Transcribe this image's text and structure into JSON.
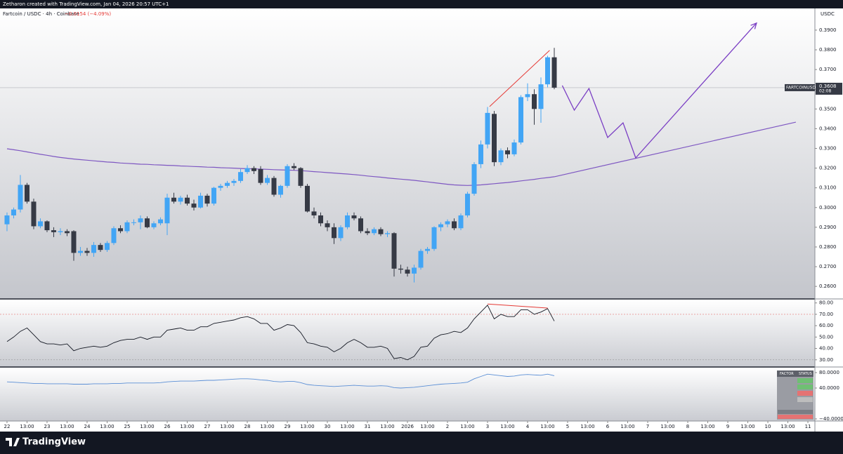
{
  "header": {
    "credit": "Zetharon created with TradingView.com, Jan 04, 2026 20:57 UTC+1",
    "symbol": "Fartcoin / USDC · 4h · Coinbase",
    "change": "−0.0154 (−4.09%)"
  },
  "footer": {
    "brand": "TradingView"
  },
  "chart_data": [
    {
      "type": "candlestick",
      "ticker": "FARTCOINUSDC",
      "currency": "USDC",
      "countdown": "02:08",
      "up_color": "#42a5f5",
      "down_color": "#363a45",
      "xlim": [
        -1.05,
        121.05
      ],
      "xticks": [
        {
          "value": 0,
          "label": "22"
        },
        {
          "value": 3,
          "label": "13:00"
        },
        {
          "value": 6,
          "label": "23"
        },
        {
          "value": 9,
          "label": "13:00"
        },
        {
          "value": 12,
          "label": "24"
        },
        {
          "value": 15,
          "label": "13:00"
        },
        {
          "value": 18,
          "label": "25"
        },
        {
          "value": 21,
          "label": "13:00"
        },
        {
          "value": 24,
          "label": "26"
        },
        {
          "value": 27,
          "label": "13:00"
        },
        {
          "value": 30,
          "label": "27"
        },
        {
          "value": 33,
          "label": "13:00"
        },
        {
          "value": 36,
          "label": "28"
        },
        {
          "value": 39,
          "label": "13:00"
        },
        {
          "value": 42,
          "label": "29"
        },
        {
          "value": 45,
          "label": "13:00"
        },
        {
          "value": 48,
          "label": "30"
        },
        {
          "value": 51,
          "label": "13:00"
        },
        {
          "value": 54,
          "label": "31"
        },
        {
          "value": 57,
          "label": "13:00"
        },
        {
          "value": 60,
          "label": "2026"
        },
        {
          "value": 63,
          "label": "13:00"
        },
        {
          "value": 66,
          "label": "2"
        },
        {
          "value": 69,
          "label": "13:00"
        },
        {
          "value": 72,
          "label": "3"
        },
        {
          "value": 75,
          "label": "13:00"
        },
        {
          "value": 78,
          "label": "4"
        },
        {
          "value": 81,
          "label": "13:00"
        },
        {
          "value": 84,
          "label": "5"
        },
        {
          "value": 87,
          "label": "13:00"
        },
        {
          "value": 90,
          "label": "6"
        },
        {
          "value": 93,
          "label": "13:00"
        },
        {
          "value": 96,
          "label": "7"
        },
        {
          "value": 99,
          "label": "13:00"
        },
        {
          "value": 102,
          "label": "8"
        },
        {
          "value": 105,
          "label": "13:00"
        },
        {
          "value": 108,
          "label": "9"
        },
        {
          "value": 111,
          "label": "13:00"
        },
        {
          "value": 114,
          "label": "10"
        },
        {
          "value": 117,
          "label": "13:00"
        },
        {
          "value": 120,
          "label": "11"
        }
      ],
      "ylim": [
        0.254,
        0.401
      ],
      "yticks": [
        {
          "value": 0.26,
          "label": "0.2600"
        },
        {
          "value": 0.27,
          "label": "0.2700"
        },
        {
          "value": 0.28,
          "label": "0.2800"
        },
        {
          "value": 0.29,
          "label": "0.2900"
        },
        {
          "value": 0.3,
          "label": "0.3000"
        },
        {
          "value": 0.31,
          "label": "0.3100"
        },
        {
          "value": 0.32,
          "label": "0.3200"
        },
        {
          "value": 0.33,
          "label": "0.3300"
        },
        {
          "value": 0.34,
          "label": "0.3400"
        },
        {
          "value": 0.35,
          "label": "0.3500"
        },
        {
          "value": 0.36,
          "label": "0.3600"
        },
        {
          "value": 0.37,
          "label": "0.3700"
        },
        {
          "value": 0.38,
          "label": "0.3800"
        },
        {
          "value": 0.39,
          "label": "0.3900"
        }
      ],
      "open": [
        0.2915,
        0.296,
        0.299,
        0.3115,
        0.303,
        0.2905,
        0.293,
        0.2885,
        0.2875,
        0.288,
        0.288,
        0.277,
        0.278,
        0.277,
        0.281,
        0.2785,
        0.282,
        0.2895,
        0.288,
        0.2925,
        0.2925,
        0.2945,
        0.29,
        0.292,
        0.292,
        0.305,
        0.303,
        0.305,
        0.302,
        0.3,
        0.306,
        0.302,
        0.31,
        0.311,
        0.3125,
        0.3135,
        0.318,
        0.32,
        0.3195,
        0.3125,
        0.315,
        0.3065,
        0.311,
        0.321,
        0.32,
        0.311,
        0.298,
        0.296,
        0.292,
        0.29,
        0.2845,
        0.29,
        0.296,
        0.2945,
        0.288,
        0.287,
        0.289,
        0.2865,
        0.287,
        0.269,
        0.2685,
        0.2665,
        0.2695,
        0.278,
        0.279,
        0.29,
        0.2915,
        0.293,
        0.2895,
        0.296,
        0.307,
        0.322,
        0.332,
        0.3475,
        0.323,
        0.329,
        0.327,
        0.333,
        0.356,
        0.3575,
        0.35,
        0.3625,
        0.3762
      ],
      "high": [
        0.2975,
        0.3,
        0.3165,
        0.3125,
        0.3045,
        0.2945,
        0.2935,
        0.29,
        0.2895,
        0.289,
        0.2885,
        0.28,
        0.2795,
        0.2825,
        0.282,
        0.283,
        0.2905,
        0.291,
        0.2935,
        0.294,
        0.296,
        0.2955,
        0.293,
        0.295,
        0.307,
        0.3075,
        0.306,
        0.3065,
        0.304,
        0.3075,
        0.307,
        0.3105,
        0.312,
        0.3135,
        0.3145,
        0.3195,
        0.3215,
        0.321,
        0.321,
        0.3165,
        0.316,
        0.3115,
        0.322,
        0.3225,
        0.3205,
        0.312,
        0.3,
        0.2975,
        0.2935,
        0.292,
        0.291,
        0.2975,
        0.2975,
        0.2955,
        0.2895,
        0.29,
        0.29,
        0.288,
        0.2875,
        0.271,
        0.27,
        0.271,
        0.279,
        0.28,
        0.2905,
        0.2925,
        0.294,
        0.2945,
        0.297,
        0.308,
        0.323,
        0.334,
        0.351,
        0.349,
        0.33,
        0.3305,
        0.3345,
        0.357,
        0.363,
        0.36,
        0.366,
        0.377,
        0.381
      ],
      "low": [
        0.288,
        0.2945,
        0.2975,
        0.302,
        0.289,
        0.2895,
        0.2875,
        0.285,
        0.286,
        0.2855,
        0.273,
        0.2755,
        0.2755,
        0.275,
        0.2775,
        0.2775,
        0.281,
        0.287,
        0.287,
        0.291,
        0.289,
        0.2895,
        0.289,
        0.291,
        0.286,
        0.302,
        0.3015,
        0.301,
        0.2985,
        0.2995,
        0.3005,
        0.301,
        0.3085,
        0.31,
        0.311,
        0.3125,
        0.317,
        0.317,
        0.3115,
        0.3115,
        0.3055,
        0.305,
        0.31,
        0.319,
        0.31,
        0.2975,
        0.2945,
        0.2905,
        0.288,
        0.2815,
        0.283,
        0.289,
        0.2935,
        0.287,
        0.286,
        0.286,
        0.2855,
        0.285,
        0.265,
        0.2665,
        0.265,
        0.262,
        0.2685,
        0.2765,
        0.278,
        0.288,
        0.29,
        0.2885,
        0.2885,
        0.295,
        0.306,
        0.32,
        0.33,
        0.321,
        0.3215,
        0.325,
        0.326,
        0.332,
        0.354,
        0.342,
        0.343,
        0.361,
        0.36
      ],
      "close": [
        0.296,
        0.299,
        0.3115,
        0.303,
        0.2905,
        0.293,
        0.2885,
        0.2875,
        0.288,
        0.287,
        0.277,
        0.278,
        0.277,
        0.281,
        0.2785,
        0.282,
        0.2895,
        0.288,
        0.2925,
        0.2925,
        0.2945,
        0.29,
        0.292,
        0.294,
        0.305,
        0.303,
        0.305,
        0.302,
        0.3,
        0.306,
        0.302,
        0.31,
        0.311,
        0.3125,
        0.3135,
        0.318,
        0.32,
        0.3185,
        0.3125,
        0.315,
        0.3065,
        0.311,
        0.321,
        0.32,
        0.311,
        0.298,
        0.296,
        0.292,
        0.29,
        0.2845,
        0.29,
        0.296,
        0.2945,
        0.288,
        0.287,
        0.289,
        0.2865,
        0.287,
        0.269,
        0.2685,
        0.2665,
        0.2695,
        0.278,
        0.279,
        0.29,
        0.2915,
        0.293,
        0.2895,
        0.296,
        0.307,
        0.322,
        0.332,
        0.348,
        0.323,
        0.329,
        0.327,
        0.333,
        0.356,
        0.3575,
        0.35,
        0.3625,
        0.3762,
        0.3608
      ],
      "ma": {
        "color": "#7e57c2",
        "values": [
          0.3298,
          0.3293,
          0.3288,
          0.3282,
          0.3276,
          0.327,
          0.3265,
          0.3259,
          0.3254,
          0.325,
          0.3246,
          0.3243,
          0.324,
          0.3237,
          0.3234,
          0.3231,
          0.3229,
          0.3226,
          0.3224,
          0.3222,
          0.322,
          0.3219,
          0.3217,
          0.3216,
          0.3214,
          0.3213,
          0.3211,
          0.321,
          0.3208,
          0.3207,
          0.3205,
          0.3204,
          0.3202,
          0.3201,
          0.32,
          0.3198,
          0.3197,
          0.3196,
          0.3195,
          0.3194,
          0.3192,
          0.3191,
          0.319,
          0.3189,
          0.3187,
          0.3185,
          0.3182,
          0.318,
          0.3177,
          0.3175,
          0.3172,
          0.317,
          0.3167,
          0.3164,
          0.316,
          0.3157,
          0.3154,
          0.315,
          0.3147,
          0.3144,
          0.3141,
          0.3138,
          0.3134,
          0.313,
          0.3126,
          0.3122,
          0.3118,
          0.3115,
          0.3113,
          0.3112,
          0.3113,
          0.3115,
          0.3118,
          0.3121,
          0.3124,
          0.3127,
          0.3131,
          0.3135,
          0.3139,
          0.3143,
          0.3148,
          0.3152,
          0.3156
        ]
      },
      "trendline": {
        "color": "#7e57c2",
        "x": [
          82,
          118.2
        ],
        "values": [
          0.3156,
          0.3433
        ]
      },
      "projection": {
        "color": "#7b3fc4",
        "x": [
          83.2,
          85,
          87.2,
          90,
          92.3,
          94.2,
          112.3
        ],
        "values": [
          0.3619,
          0.3494,
          0.3604,
          0.3355,
          0.343,
          0.3252,
          0.3936
        ]
      },
      "divergence": {
        "color": "#e53935",
        "x": [
          72.3,
          81.3
        ],
        "values": [
          0.3512,
          0.3797
        ]
      }
    },
    {
      "type": "line",
      "color": "#131722",
      "ylim": [
        24.3,
        82.9
      ],
      "yticks": [
        {
          "value": 80,
          "label": "80.00"
        },
        {
          "value": 70,
          "label": "70.00"
        },
        {
          "value": 60,
          "label": "60.00"
        },
        {
          "value": 50,
          "label": "50.00"
        },
        {
          "value": 40,
          "label": "40.00"
        },
        {
          "value": 30,
          "label": "30.00"
        }
      ],
      "levels": [
        70,
        30
      ],
      "level_colors": [
        "#e57373",
        "#9e9e9e"
      ],
      "values": [
        46,
        50,
        55,
        58,
        52,
        46,
        44,
        44,
        43,
        44,
        38,
        40,
        41,
        42,
        41,
        42,
        45,
        47,
        48,
        48,
        50,
        48,
        50,
        50,
        56,
        57,
        58,
        56,
        56,
        59,
        59,
        62,
        63,
        64,
        65,
        67,
        68,
        66,
        62,
        62,
        56,
        58,
        61,
        60,
        54,
        45,
        44,
        42,
        41,
        37,
        40,
        45,
        48,
        45,
        41,
        41,
        42,
        40,
        31,
        32,
        30,
        33,
        41,
        42,
        49,
        52,
        53,
        55,
        54,
        58,
        66,
        72,
        78,
        66,
        70,
        68,
        68,
        74,
        74,
        70,
        72,
        75,
        64
      ],
      "divergence": {
        "color": "#e53935",
        "x": [
          72,
          81
        ],
        "values": [
          79,
          75.5
        ]
      }
    },
    {
      "type": "line",
      "color": "#5b8fd6",
      "ylim": [
        -45.5,
        92.7
      ],
      "yticks": [
        {
          "value": 80,
          "label": "80.0000"
        },
        {
          "value": 40,
          "label": "40.0000"
        },
        {
          "value": -40,
          "label": "−40.0000"
        }
      ],
      "values": [
        56,
        55,
        54,
        53,
        52,
        52,
        51,
        51,
        51,
        51,
        50,
        50,
        50,
        51,
        51,
        51,
        52,
        52,
        53,
        53,
        53,
        53,
        53,
        54,
        56,
        57,
        58,
        58,
        58,
        59,
        60,
        60,
        61,
        62,
        63,
        64,
        64,
        63,
        61,
        60,
        57,
        56,
        57,
        57,
        54,
        49,
        47,
        46,
        45,
        44,
        45,
        46,
        47,
        46,
        45,
        45,
        46,
        45,
        41,
        40,
        41,
        42,
        44,
        46,
        48,
        50,
        51,
        52,
        53,
        55,
        64,
        70,
        76,
        74,
        72,
        70,
        71,
        74,
        75,
        74,
        73,
        76,
        72
      ],
      "table": {
        "headers": [
          "FACTOR",
          "STATUS"
        ]
      }
    }
  ]
}
